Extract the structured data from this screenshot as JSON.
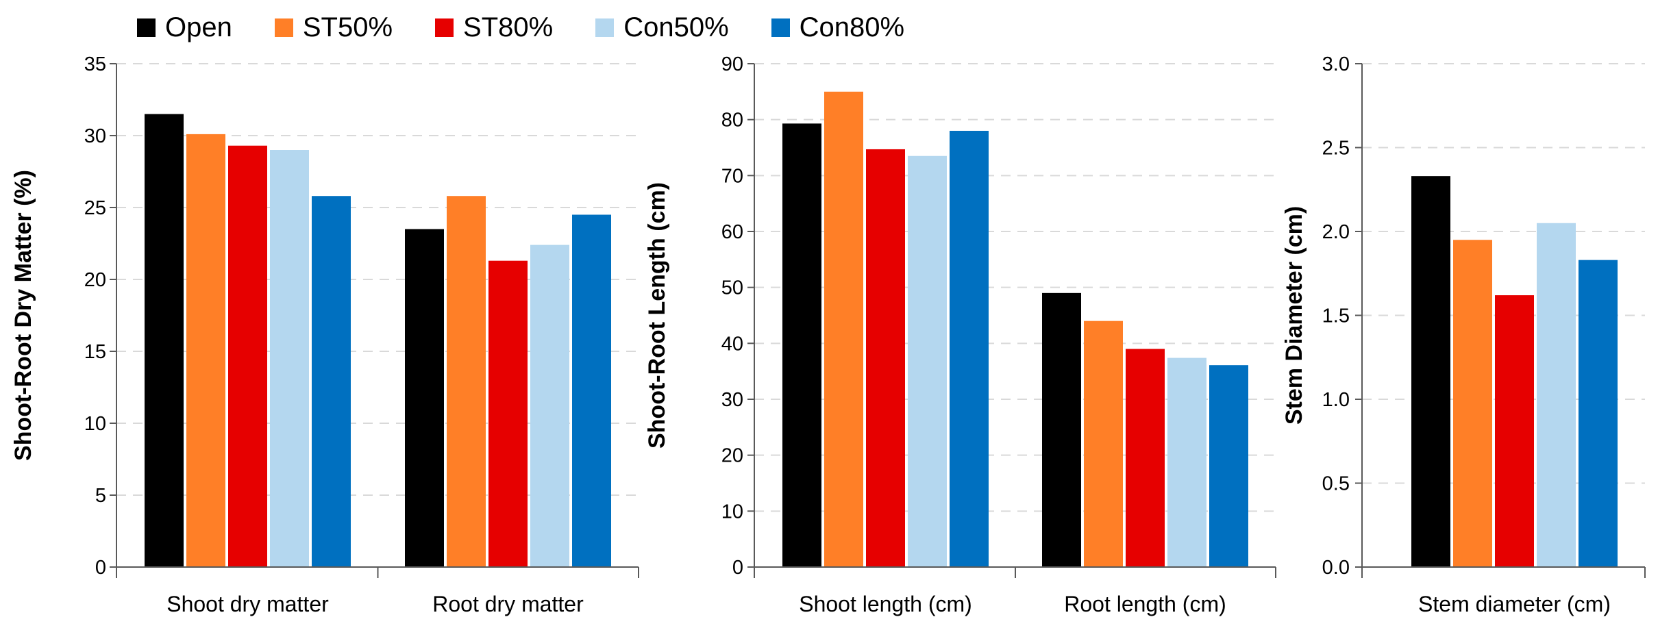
{
  "legend": [
    {
      "label": "Open",
      "color": "#000000"
    },
    {
      "label": "ST50%",
      "color": "#FF7F27"
    },
    {
      "label": "ST80%",
      "color": "#E60000"
    },
    {
      "label": "Con50%",
      "color": "#B4D7EF"
    },
    {
      "label": "Con80%",
      "color": "#0070C0"
    }
  ],
  "chart_data": [
    {
      "type": "bar",
      "ylabel": "Shoot-Root Dry Matter (%)",
      "xlabel": "",
      "ylim": [
        0,
        35
      ],
      "yticks": [
        0,
        5,
        10,
        15,
        20,
        25,
        30,
        35
      ],
      "ytick_labels": [
        "0",
        "5",
        "10",
        "15",
        "20",
        "25",
        "30",
        "35"
      ],
      "categories": [
        "Shoot dry matter",
        "Root dry matter"
      ],
      "series": [
        {
          "name": "Open",
          "values": [
            31.5,
            23.5
          ]
        },
        {
          "name": "ST50%",
          "values": [
            30.1,
            25.8
          ]
        },
        {
          "name": "ST80%",
          "values": [
            29.3,
            21.3
          ]
        },
        {
          "name": "Con50%",
          "values": [
            29.0,
            22.4
          ]
        },
        {
          "name": "Con80%",
          "values": [
            25.8,
            24.5
          ]
        }
      ]
    },
    {
      "type": "bar",
      "ylabel": "Shoot-Root Length (cm)",
      "xlabel": "",
      "ylim": [
        0,
        90
      ],
      "yticks": [
        0,
        10,
        20,
        30,
        40,
        50,
        60,
        70,
        80,
        90
      ],
      "ytick_labels": [
        "0",
        "10",
        "20",
        "30",
        "40",
        "50",
        "60",
        "70",
        "80",
        "90"
      ],
      "categories": [
        "Shoot length (cm)",
        "Root length (cm)"
      ],
      "series": [
        {
          "name": "Open",
          "values": [
            79.3,
            49.0
          ]
        },
        {
          "name": "ST50%",
          "values": [
            85.0,
            44.0
          ]
        },
        {
          "name": "ST80%",
          "values": [
            74.7,
            39.0
          ]
        },
        {
          "name": "Con50%",
          "values": [
            73.5,
            37.4
          ]
        },
        {
          "name": "Con80%",
          "values": [
            78.0,
            36.1
          ]
        }
      ]
    },
    {
      "type": "bar",
      "ylabel": "Stem Diameter (cm)",
      "xlabel": "",
      "ylim": [
        0,
        3
      ],
      "yticks": [
        0,
        0.5,
        1,
        1.5,
        2,
        2.5,
        3
      ],
      "ytick_labels": [
        "0.0",
        "0.5",
        "1.0",
        "1.5",
        "2.0",
        "2.5",
        "3.0"
      ],
      "categories": [
        "Stem diameter (cm)"
      ],
      "series": [
        {
          "name": "Open",
          "values": [
            2.33
          ]
        },
        {
          "name": "ST50%",
          "values": [
            1.95
          ]
        },
        {
          "name": "ST80%",
          "values": [
            1.62
          ]
        },
        {
          "name": "Con50%",
          "values": [
            2.05
          ]
        },
        {
          "name": "Con80%",
          "values": [
            1.83
          ]
        }
      ]
    }
  ]
}
